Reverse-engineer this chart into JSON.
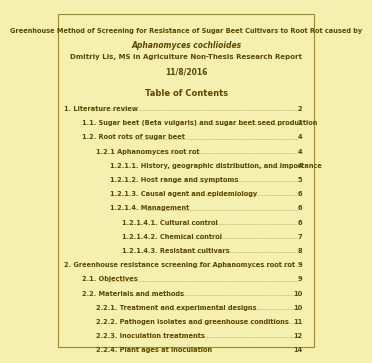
{
  "background_color": "#f5f0b0",
  "border_color": "#9a8a30",
  "title_line1": "Greenhouse Method of Screening for Resistance of Sugar Beet Cultivars to Root Rot caused by",
  "title_line2": "Aphanomyces cochlioides",
  "title_line3": "Dmitriy Lis, MS in Agriculture Non-Thesis Research Report",
  "title_line4": "11/8/2016",
  "section_header": "Table of Contents",
  "entries": [
    {
      "indent": 0,
      "text": "1. Literature review",
      "page": "2"
    },
    {
      "indent": 1,
      "text": "1.1. Sugar beet (Beta vulgaris) and sugar beet seed production",
      "page": "3"
    },
    {
      "indent": 1,
      "text": "1.2. Root rots of sugar beet",
      "page": "4"
    },
    {
      "indent": 2,
      "text": "1.2.1 Aphanomyces root rot",
      "page": "4"
    },
    {
      "indent": 3,
      "text": "1.2.1.1. History, geographic distribution, and importance",
      "page": "4"
    },
    {
      "indent": 3,
      "text": "1.2.1.2. Host range and symptoms",
      "page": "5"
    },
    {
      "indent": 3,
      "text": "1.2.1.3. Causal agent and epidemiology",
      "page": "6"
    },
    {
      "indent": 3,
      "text": "1.2.1.4. Management",
      "page": "6"
    },
    {
      "indent": 4,
      "text": "1.2.1.4.1. Cultural control",
      "page": "6"
    },
    {
      "indent": 4,
      "text": "1.2.1.4.2. Chemical control",
      "page": "7"
    },
    {
      "indent": 4,
      "text": "1.2.1.4.3. Resistant cultivars",
      "page": "8"
    },
    {
      "indent": 0,
      "text": "2. Greenhouse resistance screening for Aphanomyces root rot",
      "page": "9"
    },
    {
      "indent": 1,
      "text": "2.1. Objectives",
      "page": "9"
    },
    {
      "indent": 1,
      "text": "2.2. Materials and methods",
      "page": "10"
    },
    {
      "indent": 2,
      "text": "2.2.1. Treatment and experimental designs",
      "page": "10"
    },
    {
      "indent": 2,
      "text": "2.2.2. Pathogen isolates and greenhouse conditions",
      "page": "11"
    },
    {
      "indent": 2,
      "text": "2.2.3. Inoculation treatments",
      "page": "12"
    },
    {
      "indent": 2,
      "text": "2.2.4. Plant ages at inoculation",
      "page": "14"
    }
  ],
  "text_color": "#5a4800",
  "dot_color": "#9a8a40",
  "title_fontsize": 4.8,
  "italic_fontsize": 5.5,
  "author_fontsize": 5.0,
  "date_fontsize": 5.5,
  "toc_header_fontsize": 6.0,
  "entry_fontsize": 4.8,
  "indent_sizes": [
    0.03,
    0.1,
    0.17,
    0.24,
    0.31
  ]
}
